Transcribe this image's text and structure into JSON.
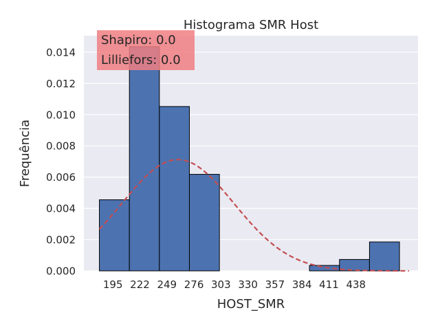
{
  "chart_data": {
    "type": "bar",
    "title": "Histograma SMR Host",
    "xlabel": "HOST_SMR",
    "ylabel": "Frequência",
    "bins": [
      {
        "x0": 181.5,
        "x1": 211.5,
        "value": 0.00455
      },
      {
        "x0": 211.5,
        "x1": 241.5,
        "value": 0.01435
      },
      {
        "x0": 241.5,
        "x1": 271.5,
        "value": 0.01052
      },
      {
        "x0": 271.5,
        "x1": 301.5,
        "value": 0.00618
      },
      {
        "x0": 301.5,
        "x1": 331.5,
        "value": 0.0
      },
      {
        "x0": 331.5,
        "x1": 361.5,
        "value": 0.0
      },
      {
        "x0": 361.5,
        "x1": 391.5,
        "value": 0.0
      },
      {
        "x0": 391.5,
        "x1": 421.5,
        "value": 0.00035
      },
      {
        "x0": 421.5,
        "x1": 451.5,
        "value": 0.00073
      },
      {
        "x0": 451.5,
        "x1": 481.5,
        "value": 0.00185
      }
    ],
    "xticks": [
      195,
      222,
      249,
      276,
      303,
      330,
      357,
      384,
      411,
      438
    ],
    "yticks": [
      "0.000",
      "0.002",
      "0.004",
      "0.006",
      "0.008",
      "0.010",
      "0.012",
      "0.014"
    ],
    "xlim": [
      166,
      500
    ],
    "ylim": [
      0,
      0.01505
    ],
    "normal_fit": {
      "mean": 260,
      "std": 56,
      "x_start": 181.5,
      "x_end": 491
    },
    "annotation_lines": [
      "Shapiro: 0.0",
      "Lilliefors: 0.0"
    ],
    "grid": true,
    "colors": {
      "bar": "#4c72b0",
      "bar_edge": "#000000",
      "curve": "#c44e52",
      "background": "#eaeaf2",
      "annotation_box": "#f07f82"
    }
  }
}
